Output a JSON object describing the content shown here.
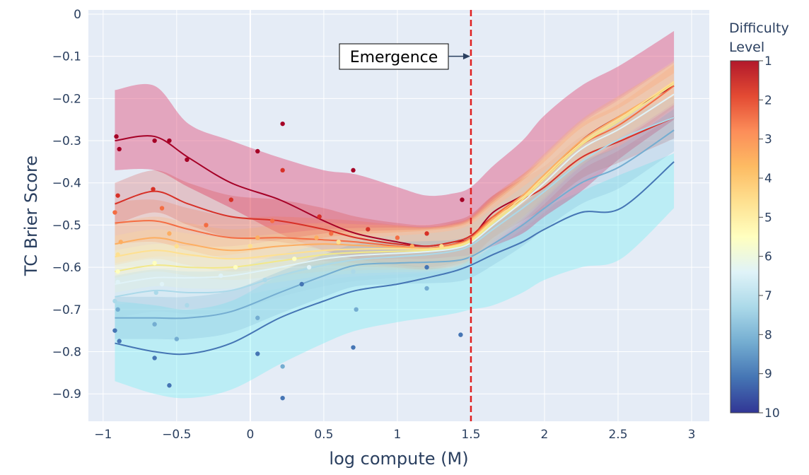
{
  "chart_data": {
    "type": "line",
    "xlabel": "log compute (M)",
    "ylabel": "TC Brier Score",
    "xlim": [
      -1.1,
      3.12
    ],
    "ylim": [
      -0.965,
      0.01
    ],
    "x_ticks": [
      -1,
      -0.5,
      0,
      0.5,
      1,
      1.5,
      2,
      2.5,
      3
    ],
    "x_tick_labels": [
      "−1",
      "−0.5",
      "0",
      "0.5",
      "1",
      "1.5",
      "2",
      "2.5",
      "3"
    ],
    "y_ticks": [
      0,
      -0.1,
      -0.2,
      -0.3,
      -0.4,
      -0.5,
      -0.6,
      -0.7,
      -0.8,
      -0.9
    ],
    "y_tick_labels": [
      "0",
      "−0.1",
      "−0.2",
      "−0.3",
      "−0.4",
      "−0.5",
      "−0.6",
      "−0.7",
      "−0.8",
      "−0.9"
    ],
    "grid": true,
    "colorbar": {
      "title_line1": "Difficulty",
      "title_line2": "Level",
      "ticks": [
        "1",
        "2",
        "3",
        "4",
        "5",
        "6",
        "7",
        "8",
        "9",
        "10"
      ],
      "colors": [
        "#b2182b",
        "#e34a33",
        "#fc8d59",
        "#fdbb63",
        "#fee090",
        "#ffffbf",
        "#e0f3f8",
        "#abd9e9",
        "#74add1",
        "#4575b4",
        "#313695"
      ]
    },
    "annotation": {
      "text": "Emergence",
      "arrow_to": {
        "x": 1.5,
        "y": -0.1
      },
      "vline_x": 1.5,
      "vline_color": "#e02020"
    },
    "x": [
      -0.92,
      -0.65,
      -0.42,
      -0.13,
      0.2,
      0.5,
      0.72,
      1.0,
      1.2,
      1.38,
      1.5,
      1.65,
      1.85,
      2.0,
      2.25,
      2.52,
      2.88
    ],
    "series": [
      {
        "level": 1,
        "color": "#a50026",
        "values": [
          -0.3,
          -0.29,
          -0.34,
          -0.4,
          -0.44,
          -0.49,
          -0.52,
          -0.54,
          -0.55,
          -0.54,
          -0.53,
          -0.47,
          -0.43,
          -0.39,
          -0.3,
          -0.24,
          -0.17
        ]
      },
      {
        "level": 2,
        "color": "#d73027",
        "values": [
          -0.45,
          -0.42,
          -0.45,
          -0.48,
          -0.49,
          -0.51,
          -0.53,
          -0.545,
          -0.55,
          -0.54,
          -0.525,
          -0.48,
          -0.44,
          -0.41,
          -0.34,
          -0.3,
          -0.245
        ]
      },
      {
        "level": 3,
        "color": "#f46d43",
        "values": [
          -0.495,
          -0.49,
          -0.51,
          -0.53,
          -0.53,
          -0.535,
          -0.54,
          -0.55,
          -0.555,
          -0.545,
          -0.53,
          -0.48,
          -0.43,
          -0.39,
          -0.31,
          -0.26,
          -0.17
        ]
      },
      {
        "level": 4,
        "color": "#fdae61",
        "values": [
          -0.545,
          -0.53,
          -0.545,
          -0.56,
          -0.55,
          -0.545,
          -0.548,
          -0.552,
          -0.555,
          -0.548,
          -0.532,
          -0.485,
          -0.43,
          -0.38,
          -0.3,
          -0.24,
          -0.165
        ]
      },
      {
        "level": 5,
        "color": "#fee090",
        "values": [
          -0.575,
          -0.56,
          -0.57,
          -0.58,
          -0.57,
          -0.56,
          -0.557,
          -0.556,
          -0.557,
          -0.55,
          -0.535,
          -0.49,
          -0.435,
          -0.385,
          -0.305,
          -0.245,
          -0.16
        ]
      },
      {
        "level": 6,
        "color": "#ffffbf",
        "values": [
          -0.61,
          -0.595,
          -0.6,
          -0.6,
          -0.585,
          -0.57,
          -0.565,
          -0.562,
          -0.56,
          -0.553,
          -0.538,
          -0.495,
          -0.44,
          -0.39,
          -0.31,
          -0.25,
          -0.165
        ]
      },
      {
        "level": 7,
        "color": "#e0f3f8",
        "values": [
          -0.64,
          -0.625,
          -0.625,
          -0.62,
          -0.6,
          -0.58,
          -0.572,
          -0.567,
          -0.563,
          -0.556,
          -0.542,
          -0.5,
          -0.445,
          -0.4,
          -0.32,
          -0.27,
          -0.19
        ]
      },
      {
        "level": 8,
        "color": "#abd9e9",
        "values": [
          -0.67,
          -0.655,
          -0.66,
          -0.655,
          -0.62,
          -0.595,
          -0.582,
          -0.575,
          -0.57,
          -0.562,
          -0.548,
          -0.51,
          -0.46,
          -0.42,
          -0.35,
          -0.295,
          -0.245
        ]
      },
      {
        "level": 9,
        "color": "#74add1",
        "values": [
          -0.72,
          -0.72,
          -0.72,
          -0.705,
          -0.66,
          -0.62,
          -0.595,
          -0.59,
          -0.588,
          -0.585,
          -0.575,
          -0.545,
          -0.5,
          -0.46,
          -0.4,
          -0.36,
          -0.275
        ]
      },
      {
        "level": 10,
        "color": "#4575b4",
        "values": [
          -0.78,
          -0.8,
          -0.805,
          -0.78,
          -0.72,
          -0.68,
          -0.655,
          -0.64,
          -0.625,
          -0.61,
          -0.595,
          -0.57,
          -0.54,
          -0.51,
          -0.47,
          -0.46,
          -0.35
        ]
      }
    ],
    "bands": [
      {
        "level": 1,
        "color": "#e0507a",
        "upper": [
          -0.18,
          -0.17,
          -0.26,
          -0.3,
          -0.34,
          -0.37,
          -0.38,
          -0.41,
          -0.43,
          -0.425,
          -0.41,
          -0.36,
          -0.3,
          -0.24,
          -0.17,
          -0.12,
          -0.04
        ],
        "lower": [
          -0.37,
          -0.37,
          -0.41,
          -0.46,
          -0.52,
          -0.56,
          -0.58,
          -0.58,
          -0.58,
          -0.575,
          -0.57,
          -0.55,
          -0.52,
          -0.48,
          -0.42,
          -0.34,
          -0.25
        ]
      },
      {
        "level": 10,
        "color": "#7ef0f5",
        "upper": [
          -0.68,
          -0.69,
          -0.7,
          -0.68,
          -0.62,
          -0.59,
          -0.58,
          -0.59,
          -0.6,
          -0.6,
          -0.58,
          -0.55,
          -0.5,
          -0.46,
          -0.42,
          -0.38,
          -0.33
        ],
        "lower": [
          -0.87,
          -0.9,
          -0.91,
          -0.89,
          -0.83,
          -0.78,
          -0.75,
          -0.73,
          -0.72,
          -0.71,
          -0.7,
          -0.69,
          -0.66,
          -0.63,
          -0.6,
          -0.58,
          -0.46
        ]
      }
    ],
    "points": [
      [
        -0.91,
        -0.29,
        1
      ],
      [
        -0.89,
        -0.32,
        1
      ],
      [
        -0.65,
        -0.3,
        1
      ],
      [
        -0.55,
        -0.3,
        1
      ],
      [
        -0.43,
        -0.345,
        1
      ],
      [
        0.05,
        -0.325,
        1
      ],
      [
        0.22,
        -0.26,
        1
      ],
      [
        0.7,
        -0.37,
        1
      ],
      [
        1.44,
        -0.44,
        1
      ],
      [
        -0.9,
        -0.43,
        2
      ],
      [
        -0.66,
        -0.415,
        2
      ],
      [
        -0.13,
        -0.44,
        2
      ],
      [
        0.22,
        -0.37,
        2
      ],
      [
        0.47,
        -0.48,
        2
      ],
      [
        0.8,
        -0.51,
        2
      ],
      [
        1.2,
        -0.52,
        2
      ],
      [
        -0.92,
        -0.47,
        3
      ],
      [
        -0.6,
        -0.46,
        3
      ],
      [
        -0.3,
        -0.5,
        3
      ],
      [
        0.15,
        -0.49,
        3
      ],
      [
        0.55,
        -0.52,
        3
      ],
      [
        1.0,
        -0.53,
        3
      ],
      [
        -0.88,
        -0.54,
        4
      ],
      [
        -0.55,
        -0.52,
        4
      ],
      [
        0.05,
        -0.53,
        4
      ],
      [
        0.45,
        -0.53,
        4
      ],
      [
        1.1,
        -0.55,
        4
      ],
      [
        -0.9,
        -0.57,
        5
      ],
      [
        -0.5,
        -0.55,
        5
      ],
      [
        0.0,
        -0.55,
        5
      ],
      [
        0.6,
        -0.54,
        5
      ],
      [
        1.3,
        -0.55,
        5
      ],
      [
        -0.9,
        -0.61,
        6
      ],
      [
        -0.65,
        -0.59,
        6
      ],
      [
        -0.1,
        -0.6,
        6
      ],
      [
        0.3,
        -0.58,
        6
      ],
      [
        -0.9,
        -0.635,
        7
      ],
      [
        -0.6,
        -0.64,
        7
      ],
      [
        -0.2,
        -0.62,
        7
      ],
      [
        0.4,
        -0.6,
        7
      ],
      [
        -0.92,
        -0.68,
        8
      ],
      [
        -0.64,
        -0.66,
        8
      ],
      [
        -0.43,
        -0.69,
        8
      ],
      [
        0.1,
        -0.63,
        8
      ],
      [
        0.7,
        -0.61,
        8
      ],
      [
        1.5,
        -0.58,
        8
      ],
      [
        -0.9,
        -0.7,
        9
      ],
      [
        -0.65,
        -0.735,
        9
      ],
      [
        -0.5,
        -0.77,
        9
      ],
      [
        0.05,
        -0.72,
        9
      ],
      [
        0.22,
        -0.835,
        9
      ],
      [
        0.72,
        -0.7,
        9
      ],
      [
        1.2,
        -0.65,
        9
      ],
      [
        -0.92,
        -0.75,
        10
      ],
      [
        -0.89,
        -0.775,
        10
      ],
      [
        -0.65,
        -0.815,
        10
      ],
      [
        -0.55,
        -0.88,
        10
      ],
      [
        0.05,
        -0.805,
        10
      ],
      [
        0.22,
        -0.91,
        10
      ],
      [
        0.35,
        -0.64,
        10
      ],
      [
        0.7,
        -0.79,
        10
      ],
      [
        1.43,
        -0.76,
        10
      ],
      [
        1.2,
        -0.6,
        10
      ]
    ]
  }
}
